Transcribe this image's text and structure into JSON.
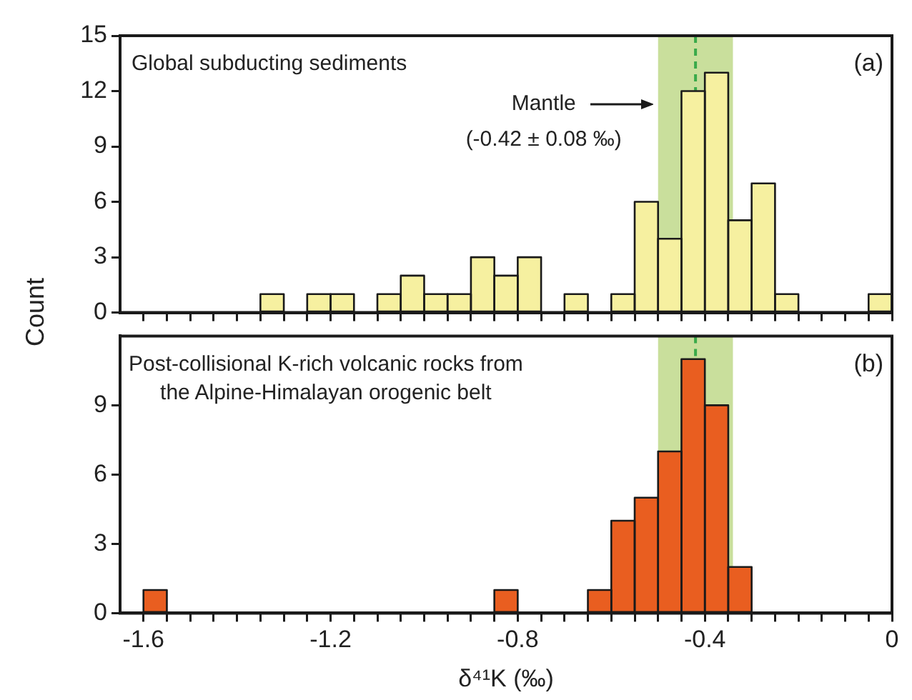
{
  "chart_data": [
    {
      "type": "histogram",
      "title": "Global subducting sediments",
      "ylabel": "Count",
      "bins": [
        -1.65,
        -1.6,
        -1.55,
        -1.5,
        -1.45,
        -1.4,
        -1.35,
        -1.3,
        -1.25,
        -1.2,
        -1.15,
        -1.1,
        -1.05,
        -1.0,
        -0.95,
        -0.9,
        -0.85,
        -0.8,
        -0.75,
        -0.7,
        -0.65,
        -0.6,
        -0.55,
        -0.5,
        -0.45,
        -0.4,
        -0.35,
        -0.3,
        -0.25,
        -0.2,
        -0.15,
        -0.1,
        -0.05,
        0.0
      ],
      "values": [
        0,
        0,
        0,
        0,
        0,
        0,
        1,
        0,
        1,
        1,
        0,
        1,
        2,
        1,
        1,
        3,
        2,
        3,
        0,
        1,
        0,
        1,
        6,
        4,
        12,
        13,
        5,
        7,
        1,
        0,
        0,
        0,
        1
      ],
      "color": "#f6f0a0",
      "xlim": [
        -1.65,
        0.0
      ],
      "xticks": [
        {
          "value": -1.6,
          "label": null
        },
        {
          "value": -1.55,
          "label": null
        },
        {
          "value": -1.5,
          "label": null
        },
        {
          "value": -1.45,
          "label": null
        },
        {
          "value": -1.4,
          "label": null
        },
        {
          "value": -1.35,
          "label": null
        },
        {
          "value": -1.3,
          "label": null
        },
        {
          "value": -1.25,
          "label": null
        },
        {
          "value": -1.2,
          "label": null
        },
        {
          "value": -1.15,
          "label": null
        },
        {
          "value": -1.1,
          "label": null
        },
        {
          "value": -1.05,
          "label": null
        },
        {
          "value": -1.0,
          "label": null
        },
        {
          "value": -0.95,
          "label": null
        },
        {
          "value": -0.9,
          "label": null
        },
        {
          "value": -0.85,
          "label": null
        },
        {
          "value": -0.8,
          "label": null
        },
        {
          "value": -0.75,
          "label": null
        },
        {
          "value": -0.7,
          "label": null
        },
        {
          "value": -0.65,
          "label": null
        },
        {
          "value": -0.6,
          "label": null
        },
        {
          "value": -0.55,
          "label": null
        },
        {
          "value": -0.5,
          "label": null
        },
        {
          "value": -0.45,
          "label": null
        },
        {
          "value": -0.4,
          "label": null
        },
        {
          "value": -0.35,
          "label": null
        },
        {
          "value": -0.3,
          "label": null
        },
        {
          "value": -0.25,
          "label": null
        },
        {
          "value": -0.2,
          "label": null
        },
        {
          "value": -0.15,
          "label": null
        },
        {
          "value": -0.1,
          "label": null
        },
        {
          "value": -0.05,
          "label": null
        },
        {
          "value": 0.0,
          "label": null
        }
      ],
      "ylim": [
        0,
        15
      ],
      "yticks": [
        0,
        3,
        6,
        9,
        12,
        15
      ],
      "tick_labels": "y",
      "bands": [
        {
          "axis": "x",
          "from": -0.5,
          "to": -0.34,
          "label": null,
          "color": "#c9df9c"
        }
      ],
      "ref_lines": [
        {
          "axis": "x",
          "value": -0.42,
          "label": null,
          "color": "#3aaa4a",
          "line_style": "dashed"
        }
      ],
      "annotations": [
        "(a)",
        "Mantle",
        "(-0.42 ± 0.08 ‰)"
      ],
      "grid": false,
      "legend": false
    },
    {
      "type": "histogram",
      "title": "Post-collisional K-rich volcanic rocks from\nthe Alpine-Himalayan orogenic belt",
      "xlabel": "δ⁴¹K (‰)",
      "bins": [
        -1.65,
        -1.6,
        -1.55,
        -1.5,
        -1.45,
        -1.4,
        -1.35,
        -1.3,
        -1.25,
        -1.2,
        -1.15,
        -1.1,
        -1.05,
        -1.0,
        -0.95,
        -0.9,
        -0.85,
        -0.8,
        -0.75,
        -0.7,
        -0.65,
        -0.6,
        -0.55,
        -0.5,
        -0.45,
        -0.4,
        -0.35,
        -0.3,
        -0.25,
        -0.2,
        -0.15,
        -0.1,
        -0.05,
        0.0
      ],
      "values": [
        0,
        1,
        0,
        0,
        0,
        0,
        0,
        0,
        0,
        0,
        0,
        0,
        0,
        0,
        0,
        0,
        1,
        0,
        0,
        0,
        1,
        4,
        5,
        7,
        11,
        9,
        2,
        0,
        0,
        0,
        0,
        0,
        0
      ],
      "color": "#e95e20",
      "xlim": [
        -1.65,
        0.0
      ],
      "xticks": [
        -1.6,
        {
          "value": -1.55,
          "label": null
        },
        {
          "value": -1.5,
          "label": null
        },
        {
          "value": -1.45,
          "label": null
        },
        {
          "value": -1.4,
          "label": null
        },
        {
          "value": -1.35,
          "label": null
        },
        {
          "value": -1.3,
          "label": null
        },
        {
          "value": -1.25,
          "label": null
        },
        -1.2,
        {
          "value": -1.15,
          "label": null
        },
        {
          "value": -1.1,
          "label": null
        },
        {
          "value": -1.05,
          "label": null
        },
        {
          "value": -1.0,
          "label": null
        },
        {
          "value": -0.95,
          "label": null
        },
        {
          "value": -0.9,
          "label": null
        },
        {
          "value": -0.85,
          "label": null
        },
        -0.8,
        {
          "value": -0.75,
          "label": null
        },
        {
          "value": -0.7,
          "label": null
        },
        {
          "value": -0.65,
          "label": null
        },
        {
          "value": -0.6,
          "label": null
        },
        {
          "value": -0.55,
          "label": null
        },
        {
          "value": -0.5,
          "label": null
        },
        {
          "value": -0.45,
          "label": null
        },
        -0.4,
        {
          "value": -0.35,
          "label": null
        },
        {
          "value": -0.3,
          "label": null
        },
        {
          "value": -0.25,
          "label": null
        },
        {
          "value": -0.2,
          "label": null
        },
        {
          "value": -0.15,
          "label": null
        },
        {
          "value": -0.1,
          "label": null
        },
        {
          "value": -0.05,
          "label": null
        },
        0
      ],
      "ylim": [
        0,
        12
      ],
      "yticks": [
        0,
        3,
        6,
        9
      ],
      "bands": [
        {
          "axis": "x",
          "from": -0.5,
          "to": -0.34,
          "label": null,
          "color": "#c9df9c"
        }
      ],
      "ref_lines": [
        {
          "axis": "x",
          "value": -0.42,
          "label": null,
          "color": "#3aaa4a",
          "line_style": "dashed"
        }
      ],
      "annotations": [
        "(b)"
      ],
      "grid": false,
      "legend": false
    }
  ]
}
